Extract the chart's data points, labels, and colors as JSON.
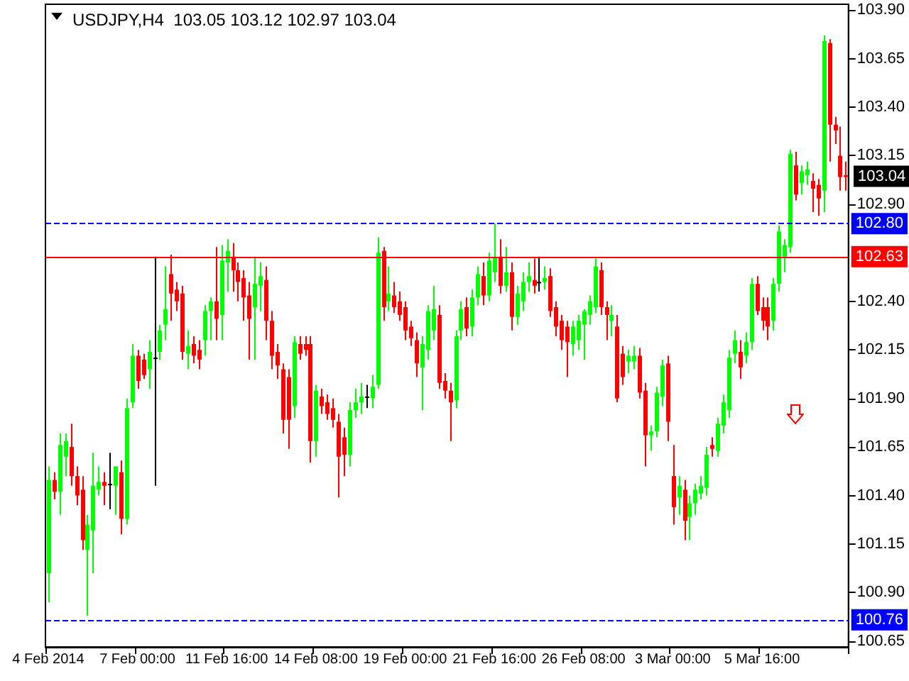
{
  "chart_data": {
    "type": "candlestick",
    "title": "USDJPY,H4  103.05 103.12 102.97 103.04",
    "categories": [
      "4 Feb 2014",
      null,
      null,
      null,
      null,
      null,
      null,
      null,
      null,
      null,
      null,
      null,
      null,
      null,
      null,
      null,
      "7 Feb 00:00",
      null,
      null,
      null,
      null,
      null,
      null,
      null,
      null,
      null,
      null,
      null,
      null,
      null,
      null,
      null,
      "11 Feb 16:00",
      null,
      null,
      null,
      null,
      null,
      null,
      null,
      null,
      null,
      null,
      null,
      null,
      null,
      null,
      null,
      "14 Feb 08:00",
      null,
      null,
      null,
      null,
      null,
      null,
      null,
      null,
      null,
      null,
      null,
      null,
      null,
      null,
      null,
      "19 Feb 00:00",
      null,
      null,
      null,
      null,
      null,
      null,
      null,
      null,
      null,
      null,
      null,
      null,
      null,
      null,
      null,
      "21 Feb 16:00",
      null,
      null,
      null,
      null,
      null,
      null,
      null,
      null,
      null,
      null,
      null,
      null,
      null,
      null,
      null,
      "26 Feb 08:00",
      null,
      null,
      null,
      null,
      null,
      null,
      null,
      null,
      null,
      null,
      null,
      null,
      null,
      null,
      null,
      "3 Mar 00:00",
      null,
      null,
      null,
      null,
      null,
      null,
      null,
      null,
      null,
      null,
      null,
      null,
      null,
      null,
      null,
      "5 Mar 16:00",
      null,
      null,
      null,
      null,
      null,
      null,
      null,
      null,
      null,
      null,
      null,
      null,
      null,
      null,
      null
    ],
    "ohlc": [
      [
        101.0,
        101.55,
        100.85,
        101.48
      ],
      [
        101.48,
        101.52,
        101.38,
        101.42
      ],
      [
        101.42,
        101.72,
        101.3,
        101.66
      ],
      [
        101.6,
        101.72,
        101.5,
        101.68
      ],
      [
        101.65,
        101.77,
        101.45,
        101.5
      ],
      [
        101.5,
        101.55,
        101.35,
        101.4
      ],
      [
        101.43,
        101.5,
        101.12,
        101.17
      ],
      [
        101.12,
        101.3,
        100.78,
        101.25
      ],
      [
        101.22,
        101.62,
        101.0,
        101.45
      ],
      [
        101.43,
        101.55,
        101.4,
        101.47
      ],
      [
        101.47,
        101.52,
        101.35,
        101.45
      ],
      [
        101.46,
        101.62,
        101.33,
        101.46
      ],
      [
        101.45,
        101.55,
        101.3,
        101.55
      ],
      [
        101.52,
        101.58,
        101.2,
        101.28
      ],
      [
        101.28,
        101.9,
        101.25,
        101.85
      ],
      [
        101.88,
        102.18,
        101.85,
        102.12
      ],
      [
        102.12,
        102.15,
        101.95,
        101.99
      ],
      [
        102.1,
        102.13,
        102.0,
        102.02
      ],
      [
        102.05,
        102.2,
        101.95,
        102.14
      ],
      [
        102.11,
        102.63,
        101.45,
        102.11
      ],
      [
        102.14,
        102.28,
        102.1,
        102.25
      ],
      [
        102.28,
        102.58,
        102.2,
        102.36
      ],
      [
        102.54,
        102.64,
        102.3,
        102.44
      ],
      [
        102.46,
        102.5,
        102.35,
        102.4
      ],
      [
        102.44,
        102.48,
        102.1,
        102.14
      ],
      [
        102.13,
        102.25,
        102.05,
        102.17
      ],
      [
        102.18,
        102.22,
        102.08,
        102.12
      ],
      [
        102.15,
        102.2,
        102.05,
        102.1
      ],
      [
        102.2,
        102.38,
        102.12,
        102.35
      ],
      [
        102.35,
        102.42,
        102.2,
        102.4
      ],
      [
        102.4,
        102.68,
        102.2,
        102.31
      ],
      [
        102.33,
        102.69,
        102.2,
        102.61
      ],
      [
        102.6,
        102.72,
        102.45,
        102.66
      ],
      [
        102.63,
        102.7,
        102.45,
        102.56
      ],
      [
        102.56,
        102.6,
        102.4,
        102.5
      ],
      [
        102.52,
        102.56,
        102.3,
        102.42
      ],
      [
        102.43,
        102.5,
        102.1,
        102.31
      ],
      [
        102.37,
        102.63,
        102.1,
        102.49
      ],
      [
        102.48,
        102.6,
        102.35,
        102.53
      ],
      [
        102.51,
        102.58,
        102.2,
        102.3
      ],
      [
        102.3,
        102.35,
        102.05,
        102.12
      ],
      [
        102.14,
        102.18,
        102.0,
        102.07
      ],
      [
        102.05,
        102.08,
        101.72,
        101.79
      ],
      [
        102.01,
        102.05,
        101.64,
        101.79
      ],
      [
        101.86,
        102.22,
        101.8,
        102.19
      ],
      [
        102.18,
        102.22,
        102.1,
        102.13
      ],
      [
        102.18,
        102.22,
        102.12,
        102.15
      ],
      [
        102.18,
        102.22,
        101.57,
        101.68
      ],
      [
        101.68,
        101.97,
        101.6,
        101.94
      ],
      [
        101.91,
        101.95,
        101.82,
        101.86
      ],
      [
        101.88,
        101.92,
        101.79,
        101.82
      ],
      [
        101.85,
        101.9,
        101.75,
        101.79
      ],
      [
        101.78,
        101.82,
        101.39,
        101.6
      ],
      [
        101.7,
        101.75,
        101.5,
        101.61
      ],
      [
        101.61,
        101.88,
        101.55,
        101.84
      ],
      [
        101.84,
        101.95,
        101.8,
        101.88
      ],
      [
        101.88,
        101.98,
        101.82,
        101.91
      ],
      [
        101.91,
        101.97,
        101.85,
        101.91
      ],
      [
        101.9,
        102.02,
        101.85,
        101.96
      ],
      [
        101.97,
        102.73,
        101.95,
        102.65
      ],
      [
        102.66,
        102.68,
        102.3,
        102.37
      ],
      [
        102.4,
        102.58,
        102.35,
        102.44
      ],
      [
        102.43,
        102.5,
        102.34,
        102.37
      ],
      [
        102.4,
        102.45,
        102.3,
        102.33
      ],
      [
        102.37,
        102.4,
        102.2,
        102.25
      ],
      [
        102.27,
        102.3,
        102.17,
        102.21
      ],
      [
        102.2,
        102.24,
        102.01,
        102.08
      ],
      [
        102.06,
        102.22,
        101.84,
        102.18
      ],
      [
        102.15,
        102.38,
        102.1,
        102.35
      ],
      [
        102.25,
        102.48,
        102.2,
        102.36
      ],
      [
        102.33,
        102.38,
        101.95,
        101.98
      ],
      [
        101.99,
        102.03,
        101.9,
        101.94
      ],
      [
        101.94,
        101.98,
        101.68,
        101.88
      ],
      [
        101.89,
        102.25,
        101.85,
        102.22
      ],
      [
        102.25,
        102.4,
        102.2,
        102.36
      ],
      [
        102.37,
        102.42,
        102.22,
        102.26
      ],
      [
        102.27,
        102.46,
        102.22,
        102.42
      ],
      [
        102.42,
        102.58,
        102.38,
        102.54
      ],
      [
        102.53,
        102.6,
        102.38,
        102.43
      ],
      [
        102.43,
        102.65,
        102.4,
        102.61
      ],
      [
        102.55,
        102.8,
        102.5,
        102.63
      ],
      [
        102.63,
        102.72,
        102.44,
        102.48
      ],
      [
        102.48,
        102.68,
        102.45,
        102.55
      ],
      [
        102.55,
        102.6,
        102.25,
        102.32
      ],
      [
        102.32,
        102.48,
        102.28,
        102.44
      ],
      [
        102.4,
        102.55,
        102.35,
        102.5
      ],
      [
        102.5,
        102.6,
        102.45,
        102.53
      ],
      [
        102.51,
        102.62,
        102.44,
        102.48
      ],
      [
        102.5,
        102.63,
        102.45,
        102.5
      ],
      [
        102.5,
        102.58,
        102.46,
        102.52
      ],
      [
        102.53,
        102.57,
        102.32,
        102.35
      ],
      [
        102.37,
        102.4,
        102.22,
        102.27
      ],
      [
        102.3,
        102.33,
        102.15,
        102.2
      ],
      [
        102.27,
        102.3,
        102.01,
        102.19
      ],
      [
        102.18,
        102.3,
        102.12,
        102.27
      ],
      [
        102.2,
        102.33,
        102.15,
        102.3
      ],
      [
        102.28,
        102.36,
        102.1,
        102.35
      ],
      [
        102.33,
        102.43,
        102.28,
        102.4
      ],
      [
        102.37,
        102.62,
        102.34,
        102.58
      ],
      [
        102.56,
        102.6,
        102.33,
        102.37
      ],
      [
        102.37,
        102.4,
        102.2,
        102.33
      ],
      [
        102.3,
        102.38,
        102.22,
        102.33
      ],
      [
        102.27,
        102.33,
        101.88,
        101.9
      ],
      [
        102.13,
        102.17,
        101.97,
        102.01
      ],
      [
        102.09,
        102.15,
        102.03,
        102.12
      ],
      [
        102.09,
        102.17,
        102.05,
        102.12
      ],
      [
        102.12,
        102.16,
        101.9,
        101.93
      ],
      [
        101.94,
        101.98,
        101.55,
        101.71
      ],
      [
        101.71,
        101.76,
        101.63,
        101.73
      ],
      [
        101.73,
        101.96,
        101.7,
        101.93
      ],
      [
        101.91,
        102.1,
        101.86,
        102.07
      ],
      [
        102.08,
        102.12,
        101.68,
        101.78
      ],
      [
        101.5,
        101.66,
        101.25,
        101.34
      ],
      [
        101.39,
        101.5,
        101.3,
        101.45
      ],
      [
        101.43,
        101.48,
        101.17,
        101.27
      ],
      [
        101.29,
        101.4,
        101.17,
        101.36
      ],
      [
        101.36,
        101.46,
        101.3,
        101.43
      ],
      [
        101.41,
        101.5,
        101.38,
        101.45
      ],
      [
        101.44,
        101.65,
        101.4,
        101.61
      ],
      [
        101.66,
        101.7,
        101.6,
        101.64
      ],
      [
        101.63,
        101.8,
        101.6,
        101.77
      ],
      [
        101.76,
        101.92,
        101.72,
        101.88
      ],
      [
        101.84,
        102.15,
        101.8,
        102.11
      ],
      [
        102.13,
        102.25,
        102.08,
        102.2
      ],
      [
        102.14,
        102.2,
        102.0,
        102.06
      ],
      [
        102.12,
        102.24,
        102.08,
        102.19
      ],
      [
        102.19,
        102.52,
        102.15,
        102.49
      ],
      [
        102.49,
        102.53,
        102.33,
        102.35
      ],
      [
        102.37,
        102.42,
        102.25,
        102.3
      ],
      [
        102.37,
        102.42,
        102.2,
        102.27
      ],
      [
        102.3,
        102.52,
        102.25,
        102.49
      ],
      [
        102.49,
        102.79,
        102.45,
        102.76
      ],
      [
        102.63,
        102.72,
        102.55,
        102.69
      ],
      [
        102.68,
        103.18,
        102.65,
        103.16
      ],
      [
        103.1,
        103.17,
        102.92,
        102.95
      ],
      [
        103.01,
        103.1,
        102.95,
        103.07
      ],
      [
        103.05,
        103.12,
        103.0,
        103.08
      ],
      [
        103.02,
        103.06,
        102.86,
        102.98
      ],
      [
        103.0,
        103.03,
        102.84,
        102.93
      ],
      [
        102.97,
        103.77,
        102.86,
        103.74
      ],
      [
        103.73,
        103.75,
        103.12,
        103.31
      ],
      [
        103.31,
        103.35,
        103.21,
        103.28
      ],
      [
        103.15,
        103.3,
        102.97,
        103.04
      ],
      [
        103.05,
        103.12,
        102.97,
        103.04
      ]
    ],
    "colors": [
      "#00ff00",
      "#ff0000",
      "#00ff00",
      "#00ff00",
      "#ff0000",
      "#ff0000",
      "#ff0000",
      "#00ff00",
      "#00ff00",
      "#00ff00",
      "#ff0000",
      "#000000",
      "#00ff00",
      "#ff0000",
      "#00ff00",
      "#00ff00",
      "#ff0000",
      "#ff0000",
      "#00ff00",
      "#000000",
      "#00ff00",
      "#00ff00",
      "#ff0000",
      "#ff0000",
      "#ff0000",
      "#00ff00",
      "#ff0000",
      "#ff0000",
      "#00ff00",
      "#00ff00",
      "#ff0000",
      "#00ff00",
      "#00ff00",
      "#ff0000",
      "#ff0000",
      "#ff0000",
      "#ff0000",
      "#00ff00",
      "#00ff00",
      "#ff0000",
      "#ff0000",
      "#ff0000",
      "#ff0000",
      "#ff0000",
      "#00ff00",
      "#ff0000",
      "#ff0000",
      "#ff0000",
      "#00ff00",
      "#ff0000",
      "#ff0000",
      "#ff0000",
      "#ff0000",
      "#ff0000",
      "#00ff00",
      "#00ff00",
      "#00ff00",
      "#000000",
      "#00ff00",
      "#00ff00",
      "#ff0000",
      "#00ff00",
      "#ff0000",
      "#ff0000",
      "#ff0000",
      "#ff0000",
      "#ff0000",
      "#00ff00",
      "#00ff00",
      "#00ff00",
      "#ff0000",
      "#ff0000",
      "#ff0000",
      "#00ff00",
      "#00ff00",
      "#ff0000",
      "#00ff00",
      "#00ff00",
      "#ff0000",
      "#00ff00",
      "#00ff00",
      "#ff0000",
      "#00ff00",
      "#ff0000",
      "#00ff00",
      "#00ff00",
      "#00ff00",
      "#ff0000",
      "#000000",
      "#00ff00",
      "#ff0000",
      "#ff0000",
      "#ff0000",
      "#ff0000",
      "#00ff00",
      "#00ff00",
      "#00ff00",
      "#00ff00",
      "#00ff00",
      "#ff0000",
      "#ff0000",
      "#00ff00",
      "#ff0000",
      "#ff0000",
      "#00ff00",
      "#00ff00",
      "#ff0000",
      "#ff0000",
      "#00ff00",
      "#00ff00",
      "#00ff00",
      "#ff0000",
      "#ff0000",
      "#00ff00",
      "#ff0000",
      "#00ff00",
      "#00ff00",
      "#00ff00",
      "#00ff00",
      "#ff0000",
      "#00ff00",
      "#00ff00",
      "#00ff00",
      "#00ff00",
      "#ff0000",
      "#00ff00",
      "#00ff00",
      "#ff0000",
      "#ff0000",
      "#ff0000",
      "#00ff00",
      "#00ff00",
      "#00ff00",
      "#00ff00",
      "#ff0000",
      "#00ff00",
      "#00ff00",
      "#ff0000",
      "#ff0000",
      "#00ff00",
      "#ff0000",
      "#ff0000",
      "#ff0000",
      "#ff0000"
    ],
    "ylim": [
      100.62,
      103.93
    ],
    "yticks": [
      {
        "value": 100.65,
        "label": "100.65"
      },
      {
        "value": 100.9,
        "label": "100.90"
      },
      {
        "value": 101.15,
        "label": "101.15"
      },
      {
        "value": 101.4,
        "label": "101.40"
      },
      {
        "value": 101.65,
        "label": "101.65"
      },
      {
        "value": 101.9,
        "label": "101.90"
      },
      {
        "value": 102.15,
        "label": "102.15"
      },
      {
        "value": 102.4,
        "label": "102.40"
      },
      {
        "value": 102.9,
        "label": "102.90"
      },
      {
        "value": 103.15,
        "label": "103.15"
      },
      {
        "value": 103.4,
        "label": "103.40"
      },
      {
        "value": 103.65,
        "label": "103.65"
      },
      {
        "value": 103.9,
        "label": "103.90"
      }
    ],
    "ref_lines": [
      {
        "axis": "y",
        "value": 102.8,
        "label": "102.80",
        "color": "#0000ff",
        "line_style": "dashed"
      },
      {
        "axis": "y",
        "value": 102.63,
        "label": "102.63",
        "color": "#ff0000",
        "line_style": "solid"
      },
      {
        "axis": "y",
        "value": 100.76,
        "label": "100.76",
        "color": "#0000ff",
        "line_style": "dashed"
      }
    ],
    "annotations": [
      "103.04"
    ]
  }
}
